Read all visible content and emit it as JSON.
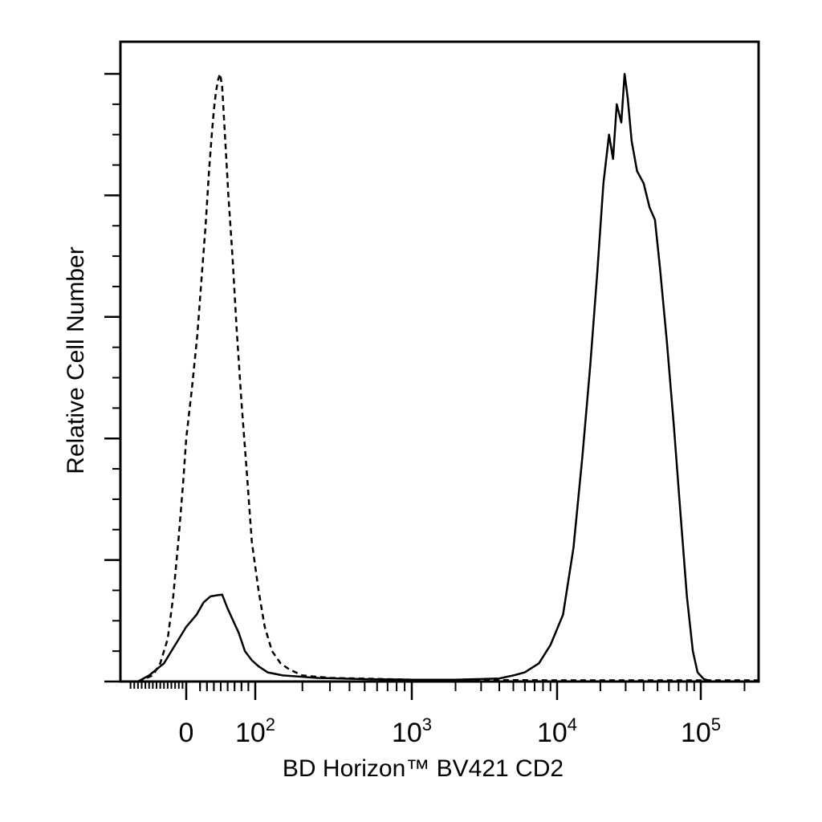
{
  "chart_data": {
    "type": "line",
    "title": "",
    "xlabel": "BD Horizon™ BV421 CD2",
    "ylabel": "Relative Cell Number",
    "x_scale": "biexponential",
    "x_ticks": [
      {
        "value": 0,
        "base": "0",
        "exp": ""
      },
      {
        "value": 100,
        "base": "10",
        "exp": "2"
      },
      {
        "value": 1000,
        "base": "10",
        "exp": "3"
      },
      {
        "value": 10000,
        "base": "10",
        "exp": "4"
      },
      {
        "value": 100000,
        "base": "10",
        "exp": "5"
      }
    ],
    "xlim": [
      -160,
      250000
    ],
    "ylim": [
      0,
      100
    ],
    "y_ticks": [
      0,
      20,
      40,
      60,
      80,
      100
    ],
    "grid": false,
    "legend": "none",
    "line_color": "#000000",
    "series": [
      {
        "style": "dashed",
        "points": [
          [
            -130,
            0
          ],
          [
            -90,
            1
          ],
          [
            -70,
            3
          ],
          [
            -50,
            7
          ],
          [
            -35,
            14
          ],
          [
            -20,
            24
          ],
          [
            -8,
            33
          ],
          [
            0,
            40
          ],
          [
            8,
            48
          ],
          [
            16,
            57
          ],
          [
            22,
            66
          ],
          [
            28,
            75
          ],
          [
            33,
            84
          ],
          [
            37,
            90
          ],
          [
            40,
            94
          ],
          [
            43,
            97
          ],
          [
            46,
            99
          ],
          [
            49,
            100
          ],
          [
            52,
            98
          ],
          [
            56,
            90
          ],
          [
            61,
            80
          ],
          [
            67,
            70
          ],
          [
            73,
            58
          ],
          [
            80,
            46
          ],
          [
            88,
            34
          ],
          [
            95,
            23
          ],
          [
            105,
            15
          ],
          [
            115,
            9
          ],
          [
            128,
            5
          ],
          [
            145,
            3
          ],
          [
            165,
            2
          ],
          [
            200,
            1
          ],
          [
            300,
            0.6
          ],
          [
            1000,
            0.3
          ],
          [
            10000,
            0.2
          ],
          [
            250000,
            0.2
          ]
        ]
      },
      {
        "style": "solid",
        "points": [
          [
            -130,
            0
          ],
          [
            -100,
            1
          ],
          [
            -80,
            2
          ],
          [
            -60,
            3
          ],
          [
            -40,
            5
          ],
          [
            -20,
            7
          ],
          [
            0,
            9
          ],
          [
            15,
            11
          ],
          [
            25,
            13
          ],
          [
            35,
            14
          ],
          [
            45,
            14.2
          ],
          [
            52,
            14.3
          ],
          [
            60,
            12
          ],
          [
            68,
            10
          ],
          [
            76,
            8
          ],
          [
            85,
            5
          ],
          [
            95,
            3.5
          ],
          [
            105,
            2.5
          ],
          [
            120,
            1.5
          ],
          [
            150,
            1
          ],
          [
            250,
            0.6
          ],
          [
            500,
            0.4
          ],
          [
            1000,
            0.3
          ],
          [
            2000,
            0.3
          ],
          [
            4000,
            0.5
          ],
          [
            5000,
            1
          ],
          [
            6000,
            1.5
          ],
          [
            7500,
            3
          ],
          [
            9000,
            6
          ],
          [
            11000,
            11
          ],
          [
            13000,
            22
          ],
          [
            15000,
            37
          ],
          [
            17000,
            52
          ],
          [
            19000,
            67
          ],
          [
            21000,
            82
          ],
          [
            23000,
            90
          ],
          [
            24500,
            86
          ],
          [
            26000,
            95
          ],
          [
            28000,
            92
          ],
          [
            29500,
            100
          ],
          [
            31000,
            96
          ],
          [
            33000,
            89
          ],
          [
            36000,
            84
          ],
          [
            40000,
            82
          ],
          [
            44000,
            78
          ],
          [
            48000,
            76
          ],
          [
            52000,
            68
          ],
          [
            58000,
            56
          ],
          [
            65000,
            42
          ],
          [
            72000,
            28
          ],
          [
            80000,
            14
          ],
          [
            88000,
            5
          ],
          [
            95000,
            1.5
          ],
          [
            105000,
            0.4
          ],
          [
            120000,
            0
          ],
          [
            250000,
            0
          ]
        ]
      }
    ]
  }
}
